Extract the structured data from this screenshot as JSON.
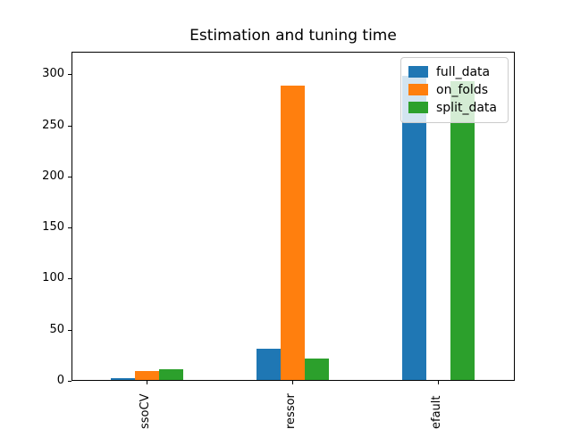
{
  "figure": {
    "background": "#ffffff",
    "axis_color": "#000000",
    "legend_border_color": "#cccccc"
  },
  "chart_data": {
    "type": "bar",
    "title": "Estimation and tuning time",
    "xlabel": "",
    "ylabel": "",
    "grid": false,
    "categories_visible_labels": [
      "ssoCV",
      "ressor",
      "efault"
    ],
    "series": [
      {
        "name": "full_data",
        "color": "#1f77b4",
        "values": [
          2,
          31,
          299
        ]
      },
      {
        "name": "on_folds",
        "color": "#ff7f0e",
        "values": [
          9,
          290,
          0
        ]
      },
      {
        "name": "split_data",
        "color": "#2ca02c",
        "values": [
          11,
          21,
          294
        ]
      }
    ],
    "yticks": [
      0,
      50,
      100,
      150,
      200,
      250,
      300
    ],
    "ylim": [
      0,
      322
    ],
    "legend": {
      "position": "upper right",
      "entries": [
        "full_data",
        "on_folds",
        "split_data"
      ]
    }
  }
}
